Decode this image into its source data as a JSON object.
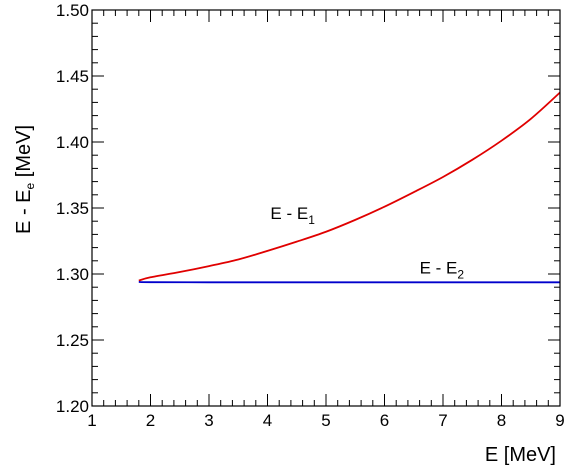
{
  "chart_data": {
    "type": "line",
    "xlabel": "E [MeV]",
    "ylabel_main": "E - E",
    "ylabel_sub": "e",
    "ylabel_unit": " [MeV]",
    "xlim": [
      1,
      9
    ],
    "ylim": [
      1.2,
      1.5
    ],
    "x_ticks": [
      1,
      2,
      3,
      4,
      5,
      6,
      7,
      8,
      9
    ],
    "x_tick_labels": [
      "1",
      "2",
      "3",
      "4",
      "5",
      "6",
      "7",
      "8",
      "9"
    ],
    "y_ticks": [
      1.2,
      1.25,
      1.3,
      1.35,
      1.4,
      1.45,
      1.5
    ],
    "y_tick_labels": [
      "1.20",
      "1.25",
      "1.30",
      "1.35",
      "1.40",
      "1.45",
      "1.50"
    ],
    "grid": false,
    "series": [
      {
        "color": "#e00000",
        "x": [
          1.8,
          2.0,
          2.5,
          3.0,
          3.5,
          4.0,
          4.5,
          5.0,
          5.5,
          6.0,
          6.5,
          7.0,
          7.5,
          8.0,
          8.5,
          9.0
        ],
        "y": [
          1.295,
          1.2975,
          1.3015,
          1.306,
          1.311,
          1.3175,
          1.3245,
          1.332,
          1.341,
          1.351,
          1.362,
          1.3735,
          1.3865,
          1.401,
          1.4175,
          1.4375
        ]
      },
      {
        "color": "#0000cc",
        "x": [
          1.8,
          2.0,
          3.0,
          4.0,
          5.0,
          6.0,
          7.0,
          8.0,
          9.0
        ],
        "y": [
          1.294,
          1.2938,
          1.2937,
          1.2937,
          1.2937,
          1.2937,
          1.2937,
          1.2937,
          1.2937
        ]
      }
    ],
    "annotations": [
      {
        "main": "E - E",
        "sub": "1",
        "x": 4.05,
        "y": 1.3415
      },
      {
        "main": "E - E",
        "sub": "2",
        "x": 6.6,
        "y": 1.3003
      }
    ]
  }
}
